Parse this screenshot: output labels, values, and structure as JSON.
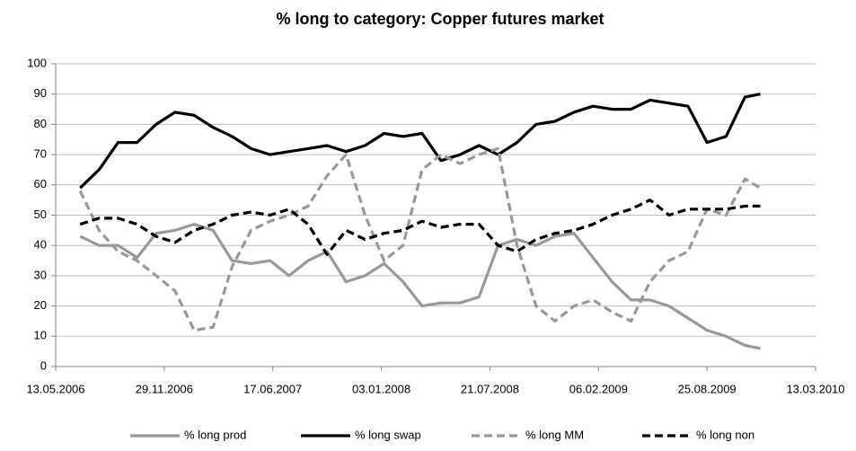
{
  "chart_data": {
    "type": "line",
    "title": "% long to category: Copper futures market",
    "x": [
      "27.06.2006",
      "01.08.2006",
      "05.09.2006",
      "10.10.2006",
      "14.11.2006",
      "19.12.2006",
      "23.01.2007",
      "27.02.2007",
      "03.04.2007",
      "08.05.2007",
      "12.06.2007",
      "17.07.2007",
      "21.08.2007",
      "25.09.2007",
      "30.10.2007",
      "04.12.2007",
      "08.01.2008",
      "12.02.2008",
      "18.03.2008",
      "22.04.2008",
      "27.05.2008",
      "01.07.2008",
      "05.08.2008",
      "09.09.2008",
      "14.10.2008",
      "18.11.2008",
      "23.12.2008",
      "27.01.2009",
      "03.03.2009",
      "07.04.2009",
      "12.05.2009",
      "16.06.2009",
      "21.07.2009",
      "25.08.2009",
      "29.09.2009",
      "03.11.2009",
      "01.12.2009"
    ],
    "series": [
      {
        "name": "% long prod",
        "color": "#999999",
        "dash": false,
        "values": [
          43,
          40,
          40,
          36,
          44,
          45,
          47,
          45,
          35,
          34,
          35,
          30,
          35,
          38,
          28,
          30,
          34,
          28,
          20,
          21,
          21,
          23,
          40,
          42,
          40,
          43,
          44,
          36,
          28,
          22,
          22,
          20,
          16,
          12,
          10,
          7,
          6
        ]
      },
      {
        "name": "% long swap",
        "color": "#000000",
        "dash": false,
        "values": [
          59,
          65,
          74,
          74,
          80,
          84,
          83,
          79,
          76,
          72,
          70,
          71,
          72,
          73,
          71,
          73,
          77,
          76,
          77,
          68,
          70,
          73,
          70,
          74,
          80,
          81,
          84,
          86,
          85,
          85,
          88,
          87,
          86,
          74,
          76,
          89,
          90
        ]
      },
      {
        "name": "% long MM",
        "color": "#999999",
        "dash": true,
        "values": [
          58,
          45,
          38,
          35,
          30,
          25,
          12,
          13,
          33,
          45,
          48,
          50,
          53,
          63,
          70,
          50,
          35,
          40,
          65,
          70,
          67,
          70,
          72,
          40,
          20,
          15,
          20,
          22,
          18,
          15,
          28,
          35,
          38,
          52,
          50,
          62,
          59
        ]
      },
      {
        "name": "% long non",
        "color": "#000000",
        "dash": true,
        "values": [
          47,
          49,
          49,
          47,
          43,
          41,
          45,
          47,
          50,
          51,
          50,
          52,
          47,
          37,
          45,
          42,
          44,
          45,
          48,
          46,
          47,
          47,
          40,
          38,
          42,
          44,
          45,
          47,
          50,
          52,
          55,
          50,
          52,
          52,
          52,
          53,
          53
        ]
      }
    ],
    "xlim": [
      "13.05.2006",
      "13.03.2010"
    ],
    "xticks": [
      "13.05.2006",
      "29.11.2006",
      "17.06.2007",
      "03.01.2008",
      "21.07.2008",
      "06.02.2009",
      "25.08.2009",
      "13.03.2010"
    ],
    "ylim": [
      0,
      100
    ],
    "yticks": [
      0,
      10,
      20,
      30,
      40,
      50,
      60,
      70,
      80,
      90,
      100
    ],
    "grid": true,
    "legend": "bottom"
  }
}
